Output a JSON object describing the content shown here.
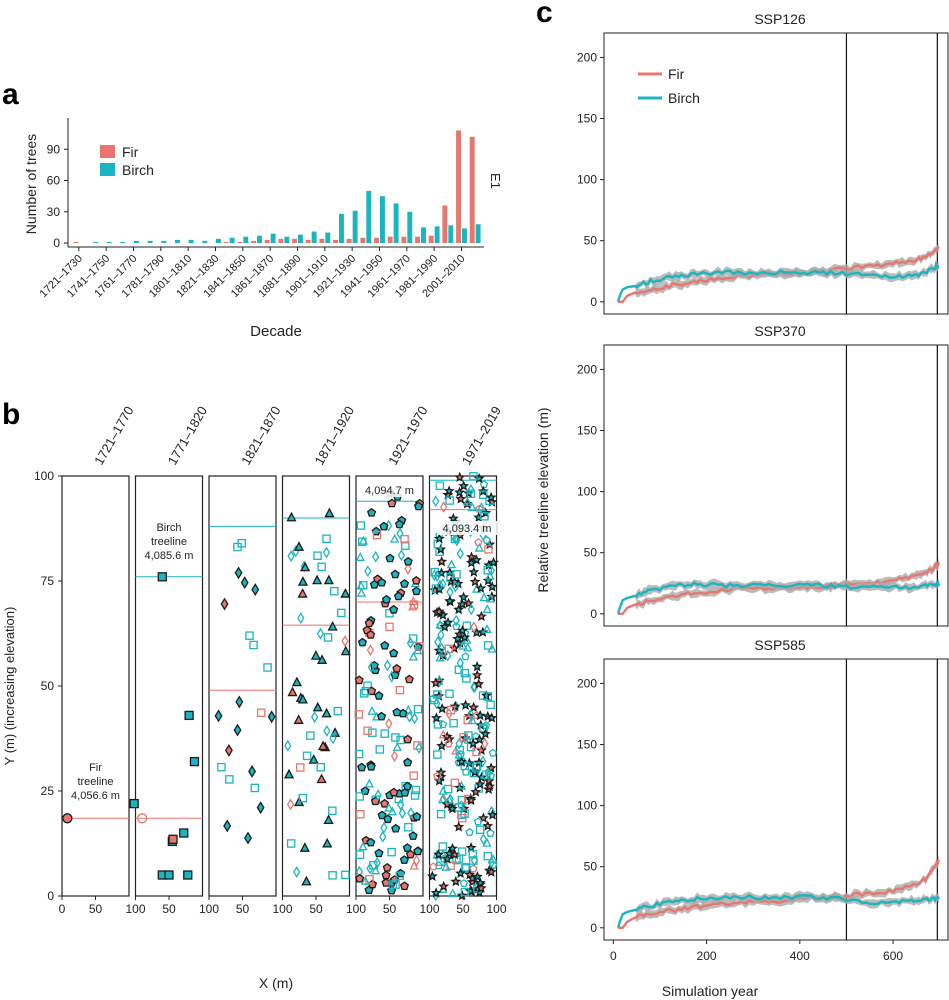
{
  "colors": {
    "fir": "#E8766E",
    "birch": "#1AB5BF",
    "axis": "#222222",
    "band": "#AAAAAA",
    "dark": "#1A1A1A"
  },
  "panel_labels": {
    "a": "a",
    "b": "b",
    "c": "c"
  },
  "chart_data": [
    {
      "type": "bar",
      "id": "a",
      "ylabel": "Number of trees",
      "xlabel": "Decade",
      "side_label": "E1",
      "yticks": [
        0,
        30,
        60,
        90
      ],
      "ylim": [
        0,
        120
      ],
      "legend": [
        "Fir",
        "Birch"
      ],
      "categories": [
        "1721–1730",
        "1731–1740",
        "1741–1750",
        "1751–1760",
        "1761–1770",
        "1771–1780",
        "1781–1790",
        "1791–1800",
        "1801–1810",
        "1811–1820",
        "1821–1830",
        "1831–1840",
        "1841–1850",
        "1851–1860",
        "1861–1870",
        "1871–1880",
        "1881–1890",
        "1891–1900",
        "1901–1910",
        "1911–1920",
        "1921–1930",
        "1931–1940",
        "1941–1950",
        "1951–1960",
        "1961–1970",
        "1971–1980",
        "1981–1990",
        "1991–2000",
        "2001–2010",
        "2011–2019"
      ],
      "tick_labels": [
        "1721–1730",
        "1741–1750",
        "1761–1770",
        "1781–1790",
        "1801–1810",
        "1821–1830",
        "1841–1850",
        "1861–1870",
        "1881–1890",
        "1901–1910",
        "1921–1930",
        "1941–1950",
        "1961–1970",
        "1981–1990",
        "2001–2010"
      ],
      "series": [
        {
          "name": "Fir",
          "values": [
            1,
            0,
            0,
            0,
            0,
            0,
            0,
            0,
            0,
            0,
            0,
            1,
            1,
            2,
            3,
            4,
            4,
            3,
            4,
            3,
            4,
            5,
            5,
            6,
            6,
            6,
            7,
            36,
            108,
            102
          ]
        },
        {
          "name": "Birch",
          "values": [
            0,
            1,
            1,
            1,
            2,
            2,
            2,
            3,
            3,
            2,
            4,
            5,
            6,
            7,
            9,
            6,
            8,
            11,
            10,
            28,
            31,
            50,
            45,
            38,
            30,
            15,
            16,
            17,
            14,
            18
          ]
        }
      ]
    },
    {
      "type": "scatter",
      "id": "b",
      "ylabel": "Y (m) (increasing elevation)",
      "xlabel": "X (m)",
      "ylim": [
        0,
        100
      ],
      "yticks": [
        0,
        25,
        50,
        75,
        100
      ],
      "xlim": [
        0,
        100
      ],
      "panels": [
        {
          "title": "1721–1770",
          "x_tick_left": "0",
          "fir_line": 18.5,
          "birch_line": null,
          "annotations": [
            "Fir",
            "treeline",
            "4,056.6 m"
          ]
        },
        {
          "title": "1771–1820",
          "x_tick_left": "100",
          "fir_line": 18.5,
          "birch_line": 76,
          "annotations": [
            "Birch",
            "treeline",
            "4,085.6 m"
          ]
        },
        {
          "title": "1821–1870",
          "x_tick_left": "100",
          "fir_line": 49,
          "birch_line": 88,
          "annotations": []
        },
        {
          "title": "1871–1920",
          "x_tick_left": "100",
          "fir_line": 64.5,
          "birch_line": 90,
          "annotations": []
        },
        {
          "title": "1921–1970",
          "x_tick_left": "100",
          "fir_line": 70,
          "birch_line": 94,
          "annotations": [
            "4,094.7 m"
          ]
        },
        {
          "title": "1971–2019",
          "x_tick_left": "100",
          "fir_line": 92,
          "birch_line": 99,
          "annotations": [
            "4,093.4 m"
          ]
        }
      ],
      "x_tick_middle": "50",
      "x_tick_right": "100"
    },
    {
      "type": "line",
      "id": "c",
      "ylabel": "Relative treeline elevation (m)",
      "xlabel": "Simulation year",
      "xticks": [
        0,
        200,
        400,
        600
      ],
      "xlim": [
        -20,
        720
      ],
      "ylim": [
        -10,
        220
      ],
      "yticks": [
        0,
        50,
        100,
        150,
        200
      ],
      "vlines": [
        500,
        695
      ],
      "legend": [
        "Fir",
        "Birch"
      ],
      "panels": [
        {
          "title": "SSP126",
          "fir": {
            "x": [
              10,
              20,
              30,
              50,
              80,
              120,
              160,
              200,
              250,
              300,
              350,
              400,
              450,
              500,
              550,
              600,
              640,
              670,
              690,
              700
            ],
            "y": [
              0,
              0,
              5,
              8,
              10,
              13,
              15,
              18,
              20,
              22,
              23,
              24,
              25,
              27,
              30,
              31,
              33,
              37,
              42,
              45
            ]
          },
          "birch": {
            "x": [
              10,
              15,
              20,
              30,
              50,
              80,
              120,
              160,
              200,
              250,
              300,
              350,
              400,
              450,
              500,
              550,
              600,
              640,
              670,
              690,
              700
            ],
            "y": [
              0,
              6,
              10,
              12,
              13,
              17,
              20,
              22,
              23,
              24,
              24,
              24,
              24,
              24,
              23,
              22,
              21,
              21,
              24,
              28,
              30
            ]
          }
        },
        {
          "title": "SSP370",
          "fir": {
            "x": [
              10,
              20,
              30,
              50,
              80,
              120,
              160,
              200,
              250,
              300,
              350,
              400,
              450,
              500,
              550,
              600,
              640,
              670,
              690,
              700
            ],
            "y": [
              0,
              0,
              5,
              8,
              11,
              14,
              16,
              18,
              20,
              21,
              21,
              22,
              22,
              24,
              25,
              27,
              30,
              34,
              38,
              42
            ]
          },
          "birch": {
            "x": [
              10,
              15,
              20,
              30,
              50,
              80,
              120,
              160,
              200,
              250,
              300,
              350,
              400,
              450,
              500,
              550,
              600,
              640,
              670,
              690,
              700
            ],
            "y": [
              0,
              6,
              11,
              13,
              15,
              19,
              22,
              24,
              24,
              23,
              23,
              23,
              23,
              23,
              22,
              22,
              22,
              22,
              23,
              24,
              24
            ]
          }
        },
        {
          "title": "SSP585",
          "fir": {
            "x": [
              10,
              20,
              30,
              50,
              80,
              120,
              160,
              200,
              250,
              300,
              350,
              400,
              450,
              500,
              550,
              600,
              640,
              670,
              690,
              700
            ],
            "y": [
              0,
              0,
              5,
              9,
              11,
              14,
              16,
              18,
              20,
              21,
              22,
              24,
              25,
              26,
              28,
              30,
              34,
              40,
              50,
              56
            ]
          },
          "birch": {
            "x": [
              10,
              15,
              20,
              30,
              50,
              80,
              120,
              160,
              200,
              250,
              300,
              350,
              400,
              450,
              500,
              550,
              600,
              640,
              670,
              690,
              700
            ],
            "y": [
              0,
              6,
              11,
              13,
              15,
              18,
              21,
              23,
              24,
              25,
              25,
              25,
              25,
              25,
              23,
              21,
              20,
              22,
              23,
              24,
              24
            ]
          }
        }
      ]
    }
  ]
}
